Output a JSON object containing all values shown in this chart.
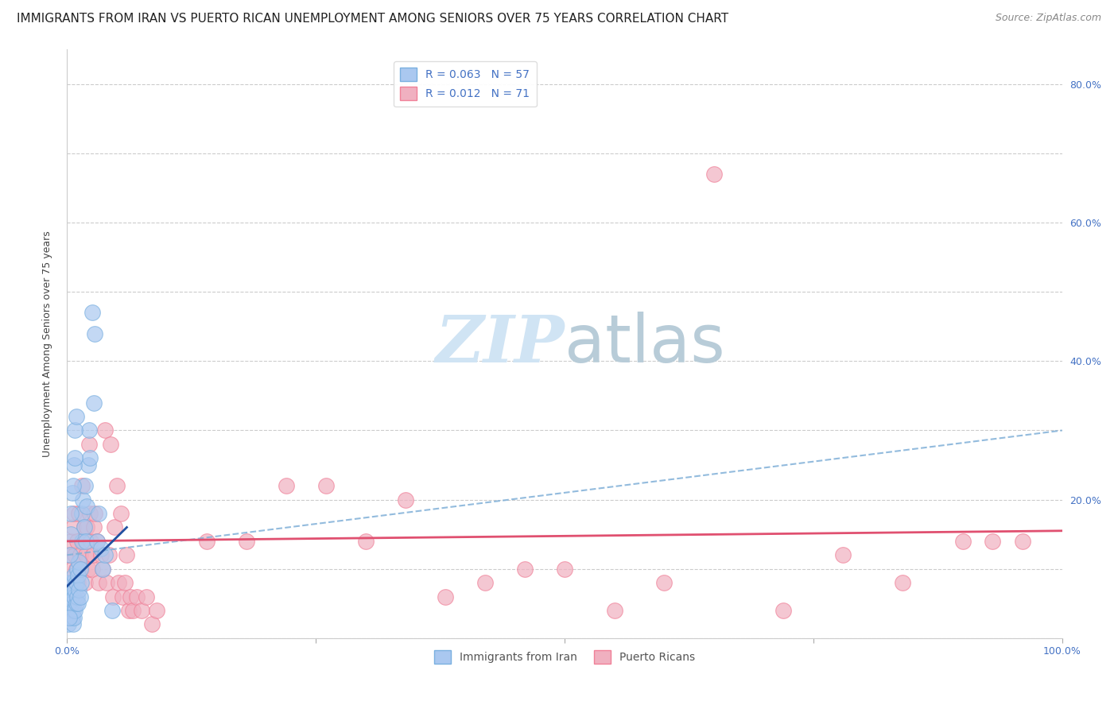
{
  "title": "IMMIGRANTS FROM IRAN VS PUERTO RICAN UNEMPLOYMENT AMONG SENIORS OVER 75 YEARS CORRELATION CHART",
  "source": "Source: ZipAtlas.com",
  "ylabel": "Unemployment Among Seniors over 75 years",
  "xlim": [
    0.0,
    1.0
  ],
  "ylim": [
    0.0,
    0.85
  ],
  "legend_r_blue": "R = 0.063",
  "legend_n_blue": "N = 57",
  "legend_r_pink": "R = 0.012",
  "legend_n_pink": "N = 71",
  "legend_label_blue": "Immigrants from Iran",
  "legend_label_pink": "Puerto Ricans",
  "blue_color": "#7ab0e0",
  "pink_color": "#f08098",
  "blue_fill": "#aac8f0",
  "pink_fill": "#f0b0c0",
  "trendline_blue_solid_color": "#2050a0",
  "trendline_blue_dashed_color": "#80b0d8",
  "trendline_pink_color": "#e05070",
  "watermark_color": "#d0e4f4",
  "grid_color": "#cccccc",
  "background_color": "#ffffff",
  "title_fontsize": 11,
  "source_fontsize": 9,
  "axis_label_fontsize": 9,
  "tick_fontsize": 9,
  "blue_scatter_x": [
    0.001,
    0.002,
    0.003,
    0.003,
    0.004,
    0.004,
    0.005,
    0.005,
    0.005,
    0.006,
    0.006,
    0.006,
    0.007,
    0.007,
    0.007,
    0.008,
    0.008,
    0.009,
    0.009,
    0.01,
    0.01,
    0.011,
    0.011,
    0.012,
    0.012,
    0.013,
    0.013,
    0.014,
    0.015,
    0.015,
    0.016,
    0.017,
    0.018,
    0.019,
    0.02,
    0.021,
    0.022,
    0.023,
    0.025,
    0.027,
    0.028,
    0.03,
    0.032,
    0.034,
    0.036,
    0.038,
    0.002,
    0.003,
    0.004,
    0.004,
    0.005,
    0.006,
    0.007,
    0.008,
    0.008,
    0.009,
    0.045
  ],
  "blue_scatter_y": [
    0.02,
    0.05,
    0.07,
    0.08,
    0.04,
    0.06,
    0.03,
    0.05,
    0.08,
    0.02,
    0.04,
    0.07,
    0.03,
    0.06,
    0.09,
    0.04,
    0.07,
    0.05,
    0.08,
    0.06,
    0.1,
    0.05,
    0.09,
    0.07,
    0.11,
    0.06,
    0.1,
    0.08,
    0.14,
    0.18,
    0.2,
    0.16,
    0.22,
    0.14,
    0.19,
    0.25,
    0.3,
    0.26,
    0.47,
    0.34,
    0.44,
    0.14,
    0.18,
    0.13,
    0.1,
    0.12,
    0.03,
    0.12,
    0.15,
    0.18,
    0.21,
    0.22,
    0.25,
    0.26,
    0.3,
    0.32,
    0.04
  ],
  "pink_scatter_x": [
    0.002,
    0.003,
    0.004,
    0.005,
    0.006,
    0.007,
    0.007,
    0.008,
    0.009,
    0.01,
    0.011,
    0.012,
    0.013,
    0.014,
    0.015,
    0.016,
    0.017,
    0.018,
    0.019,
    0.02,
    0.021,
    0.022,
    0.023,
    0.024,
    0.025,
    0.026,
    0.027,
    0.028,
    0.03,
    0.032,
    0.034,
    0.036,
    0.038,
    0.04,
    0.042,
    0.044,
    0.046,
    0.048,
    0.05,
    0.052,
    0.054,
    0.056,
    0.058,
    0.06,
    0.062,
    0.064,
    0.066,
    0.07,
    0.075,
    0.08,
    0.085,
    0.09,
    0.14,
    0.18,
    0.22,
    0.26,
    0.3,
    0.34,
    0.38,
    0.42,
    0.46,
    0.5,
    0.55,
    0.6,
    0.65,
    0.72,
    0.78,
    0.84,
    0.9,
    0.93,
    0.96
  ],
  "pink_scatter_y": [
    0.12,
    0.08,
    0.14,
    0.1,
    0.16,
    0.08,
    0.18,
    0.12,
    0.1,
    0.14,
    0.08,
    0.18,
    0.12,
    0.1,
    0.22,
    0.14,
    0.16,
    0.08,
    0.12,
    0.16,
    0.1,
    0.28,
    0.18,
    0.14,
    0.1,
    0.12,
    0.16,
    0.18,
    0.14,
    0.08,
    0.12,
    0.1,
    0.3,
    0.08,
    0.12,
    0.28,
    0.06,
    0.16,
    0.22,
    0.08,
    0.18,
    0.06,
    0.08,
    0.12,
    0.04,
    0.06,
    0.04,
    0.06,
    0.04,
    0.06,
    0.02,
    0.04,
    0.14,
    0.14,
    0.22,
    0.22,
    0.14,
    0.2,
    0.06,
    0.08,
    0.1,
    0.1,
    0.04,
    0.08,
    0.67,
    0.04,
    0.12,
    0.08,
    0.14,
    0.14,
    0.14
  ],
  "blue_solid_trend_x": [
    0.0,
    0.06
  ],
  "blue_solid_trend_y": [
    0.075,
    0.16
  ],
  "blue_dashed_trend_x": [
    0.0,
    1.0
  ],
  "blue_dashed_trend_y": [
    0.12,
    0.3
  ],
  "pink_trend_x": [
    0.0,
    1.0
  ],
  "pink_trend_y": [
    0.14,
    0.155
  ]
}
